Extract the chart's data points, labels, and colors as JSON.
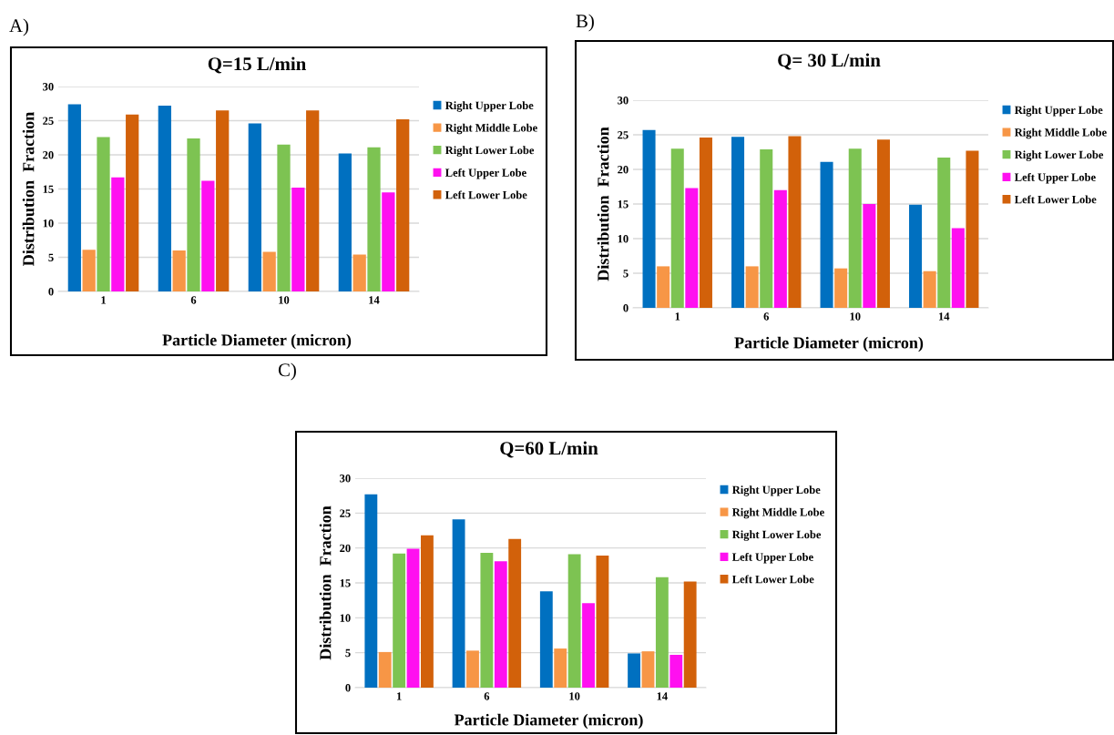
{
  "chart_data": [
    {
      "type": "bar",
      "title": "Q=15 L/min",
      "xlabel": "Particle Diameter (micron)",
      "ylabel": "Distribution  Fraction",
      "annotations": [
        "A)"
      ],
      "categories": [
        "1",
        "6",
        "10",
        "14"
      ],
      "ylim": [
        0,
        30
      ],
      "yticks": [
        0,
        5,
        10,
        15,
        20,
        25,
        30
      ],
      "grid": "y",
      "legend": "right",
      "series": [
        {
          "name": "Right Upper Lobe",
          "color": "#0070c0",
          "values": [
            27.4,
            27.2,
            24.6,
            20.2
          ]
        },
        {
          "name": "Right Middle Lobe",
          "color": "#f79646",
          "values": [
            6.1,
            6.0,
            5.8,
            5.4
          ]
        },
        {
          "name": "Right Lower Lobe",
          "color": "#7dc352",
          "values": [
            22.6,
            22.4,
            21.5,
            21.1
          ]
        },
        {
          "name": "Left Upper Lobe",
          "color": "#ff10f0",
          "values": [
            16.7,
            16.2,
            15.2,
            14.5
          ]
        },
        {
          "name": "Left Lower Lobe",
          "color": "#d2610a",
          "values": [
            25.9,
            26.5,
            26.5,
            25.2
          ]
        }
      ]
    },
    {
      "type": "bar",
      "title": "Q= 30 L/min",
      "xlabel": "Particle Diameter (micron)",
      "ylabel": "Distribution  Fraction",
      "annotations": [
        "B)"
      ],
      "categories": [
        "1",
        "6",
        "10",
        "14"
      ],
      "ylim": [
        0,
        30
      ],
      "yticks": [
        0,
        5,
        10,
        15,
        20,
        25,
        30
      ],
      "grid": "y",
      "legend": "right",
      "series": [
        {
          "name": "Right Upper Lobe",
          "color": "#0070c0",
          "values": [
            25.7,
            24.7,
            21.1,
            14.9
          ]
        },
        {
          "name": "Right Middle Lobe",
          "color": "#f79646",
          "values": [
            6.0,
            6.0,
            5.7,
            5.3
          ]
        },
        {
          "name": "Right Lower Lobe",
          "color": "#7dc352",
          "values": [
            23.0,
            22.9,
            23.0,
            21.7
          ]
        },
        {
          "name": "Left Upper Lobe",
          "color": "#ff10f0",
          "values": [
            17.3,
            17.0,
            15.0,
            11.5
          ]
        },
        {
          "name": "Left Lower Lobe",
          "color": "#d2610a",
          "values": [
            24.6,
            24.8,
            24.3,
            22.7
          ]
        }
      ]
    },
    {
      "type": "bar",
      "title": "Q=60 L/min",
      "xlabel": "Particle Diameter (micron)",
      "ylabel": "Distribution  Fraction",
      "annotations": [
        "C)"
      ],
      "categories": [
        "1",
        "6",
        "10",
        "14"
      ],
      "ylim": [
        0,
        30
      ],
      "yticks": [
        0,
        5,
        10,
        15,
        20,
        25,
        30
      ],
      "grid": "y",
      "legend": "right",
      "series": [
        {
          "name": "Right Upper Lobe",
          "color": "#0070c0",
          "values": [
            27.7,
            24.1,
            13.8,
            4.9
          ]
        },
        {
          "name": "Right Middle Lobe",
          "color": "#f79646",
          "values": [
            5.1,
            5.3,
            5.6,
            5.2
          ]
        },
        {
          "name": "Right Lower Lobe",
          "color": "#7dc352",
          "values": [
            19.2,
            19.3,
            19.1,
            15.8
          ]
        },
        {
          "name": "Left Upper Lobe",
          "color": "#ff10f0",
          "values": [
            19.9,
            18.1,
            12.1,
            4.7
          ]
        },
        {
          "name": "Left Lower Lobe",
          "color": "#d2610a",
          "values": [
            21.8,
            21.3,
            18.9,
            15.2
          ]
        }
      ]
    }
  ]
}
